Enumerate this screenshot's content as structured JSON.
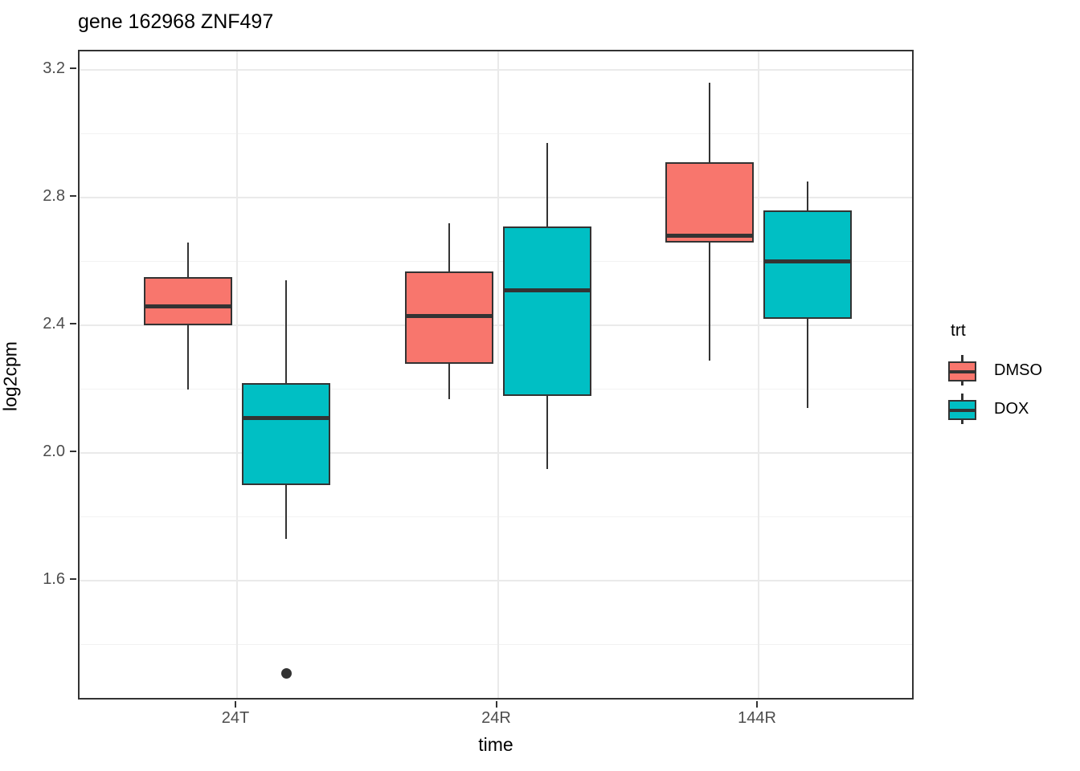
{
  "title": "gene 162968 ZNF497",
  "axes": {
    "x": {
      "label": "time",
      "tick_labels": [
        "24T",
        "24R",
        "144R"
      ]
    },
    "y": {
      "label": "log2cpm",
      "tick_labels": [
        "3.2",
        "2.8",
        "2.4",
        "2.0",
        "1.6"
      ],
      "tick_values": [
        3.2,
        2.8,
        2.4,
        2.0,
        1.6
      ]
    }
  },
  "legend": {
    "title": "trt",
    "entries": [
      {
        "label": "DMSO",
        "color": "#F8766D"
      },
      {
        "label": "DOX",
        "color": "#00BFC4"
      }
    ]
  },
  "chart_data": {
    "type": "boxplot",
    "title": "gene 162968 ZNF497",
    "xlabel": "time",
    "ylabel": "log2cpm",
    "categories": [
      "24T",
      "24R",
      "144R"
    ],
    "ylim": [
      1.223,
      3.258
    ],
    "y_major_ticks": [
      3.2,
      2.8,
      2.4,
      2.0,
      1.6
    ],
    "y_minor_ticks": [
      3.0,
      2.6,
      2.2,
      1.8,
      1.4
    ],
    "grid": true,
    "legend_position": "right",
    "series": [
      {
        "name": "DMSO",
        "color": "#F8766D",
        "boxes": [
          {
            "category": "24T",
            "whisker_low": 2.2,
            "q1": 2.4,
            "median": 2.46,
            "q3": 2.55,
            "whisker_high": 2.66,
            "outliers": []
          },
          {
            "category": "24R",
            "whisker_low": 2.17,
            "q1": 2.28,
            "median": 2.43,
            "q3": 2.57,
            "whisker_high": 2.72,
            "outliers": []
          },
          {
            "category": "144R",
            "whisker_low": 2.29,
            "q1": 2.66,
            "median": 2.68,
            "q3": 2.91,
            "whisker_high": 3.16,
            "outliers": []
          }
        ]
      },
      {
        "name": "DOX",
        "color": "#00BFC4",
        "boxes": [
          {
            "category": "24T",
            "whisker_low": 1.73,
            "q1": 1.9,
            "median": 2.11,
            "q3": 2.22,
            "whisker_high": 2.54,
            "outliers": [
              1.31
            ]
          },
          {
            "category": "24R",
            "whisker_low": 1.95,
            "q1": 2.18,
            "median": 2.51,
            "q3": 2.71,
            "whisker_high": 2.97,
            "outliers": []
          },
          {
            "category": "144R",
            "whisker_low": 2.14,
            "q1": 2.42,
            "median": 2.6,
            "q3": 2.76,
            "whisker_high": 2.85,
            "outliers": []
          }
        ]
      }
    ]
  },
  "colors": {
    "box_outline": "#333333",
    "grid_major": "#EAEAEA",
    "grid_minor": "#F2F2F2",
    "tick_text": "#4D4D4D",
    "panel_border": "#333333",
    "outlier": "#333333"
  }
}
